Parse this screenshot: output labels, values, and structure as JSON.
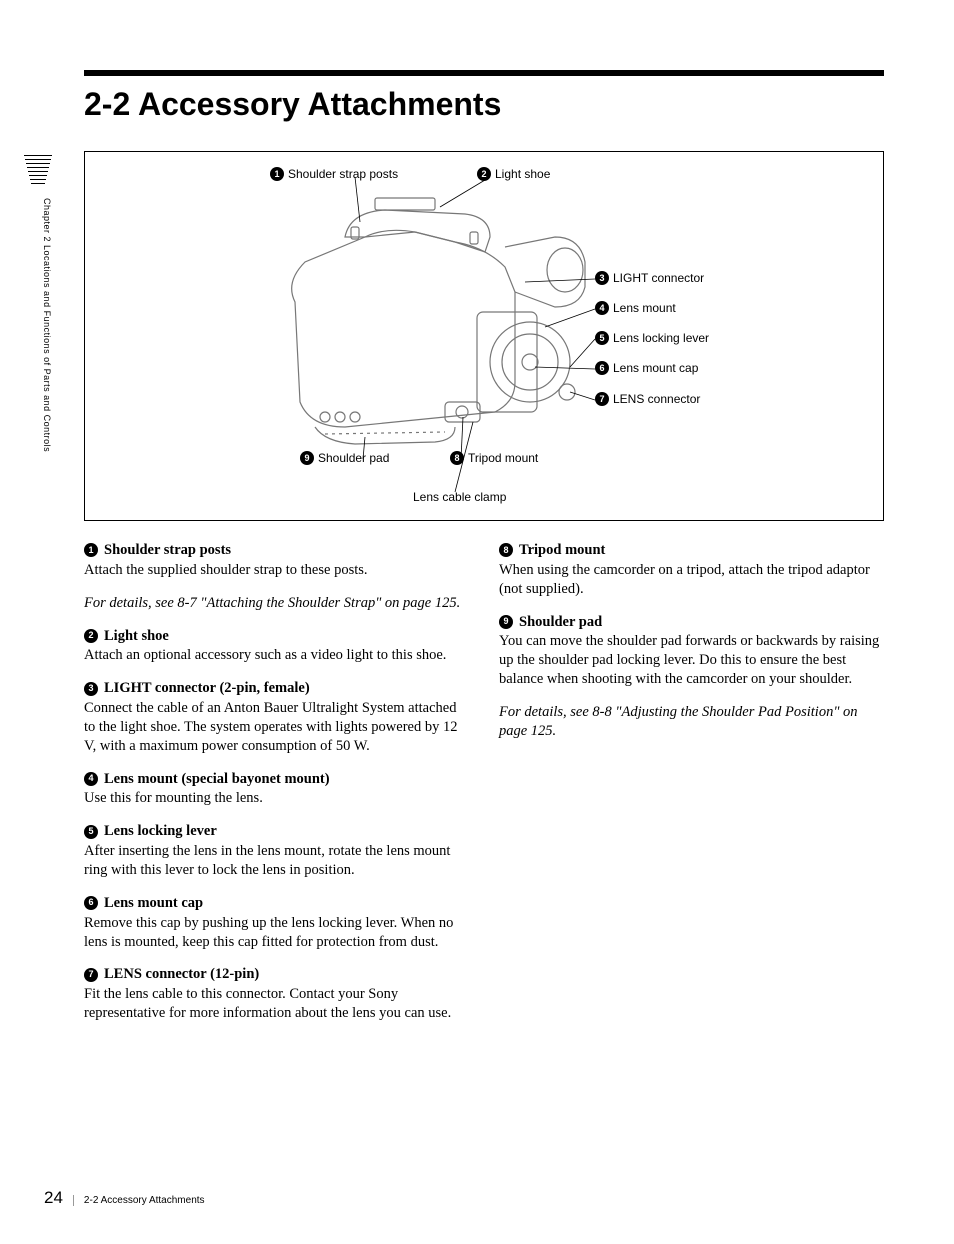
{
  "heading": "2-2  Accessory Attachments",
  "sidebar": "Chapter 2  Locations and Functions of Parts and Controls",
  "page_number": "24",
  "footer_text": "2-2 Accessory Attachments",
  "diagram_labels": {
    "l1": "Shoulder strap posts",
    "l2": "Light shoe",
    "l3": "LIGHT connector",
    "l4": "Lens mount",
    "l5": "Lens locking lever",
    "l6": "Lens mount cap",
    "l7": "LENS connector",
    "l8": "Tripod mount",
    "l9": "Shoulder pad",
    "lcc": "Lens cable clamp"
  },
  "left_items": [
    {
      "num": "1",
      "title": "Shoulder strap posts",
      "body": "Attach the supplied shoulder strap to these posts."
    },
    {
      "num": "",
      "title": "",
      "body": "",
      "xref": "For details, see 8-7 \"Attaching the Shoulder Strap\" on page 125."
    },
    {
      "num": "2",
      "title": "Light shoe",
      "body": "Attach an optional accessory such as a video light to this shoe."
    },
    {
      "num": "3",
      "title": "LIGHT connector (2-pin, female)",
      "body": "Connect the cable of an Anton Bauer Ultralight System attached to the light shoe. The system operates with lights powered by 12 V, with a maximum power consumption of 50 W."
    },
    {
      "num": "4",
      "title": "Lens mount (special bayonet mount)",
      "body": "Use this for mounting the lens."
    },
    {
      "num": "5",
      "title": "Lens locking lever",
      "body": "After inserting the lens in the lens mount, rotate the lens mount ring with this lever to lock the lens in position."
    },
    {
      "num": "6",
      "title": "Lens mount cap",
      "body": "Remove this cap by pushing up the lens locking lever. When no lens is mounted, keep this cap fitted for protection from dust."
    },
    {
      "num": "7",
      "title": "LENS connector (12-pin)",
      "body": "Fit the lens cable to this connector. Contact your Sony representative for more information about the lens you can use."
    }
  ],
  "right_items": [
    {
      "num": "8",
      "title": "Tripod mount",
      "body": "When using the camcorder on a tripod, attach the tripod adaptor (not supplied)."
    },
    {
      "num": "9",
      "title": "Shoulder pad",
      "body": "You can move the shoulder pad forwards or backwards by raising up the shoulder pad locking lever. Do this to ensure the best balance when shooting with the camcorder on your shoulder."
    },
    {
      "num": "",
      "title": "",
      "body": "",
      "xref": "For details, see 8-8 \"Adjusting the Shoulder Pad Position\" on page 125."
    }
  ]
}
